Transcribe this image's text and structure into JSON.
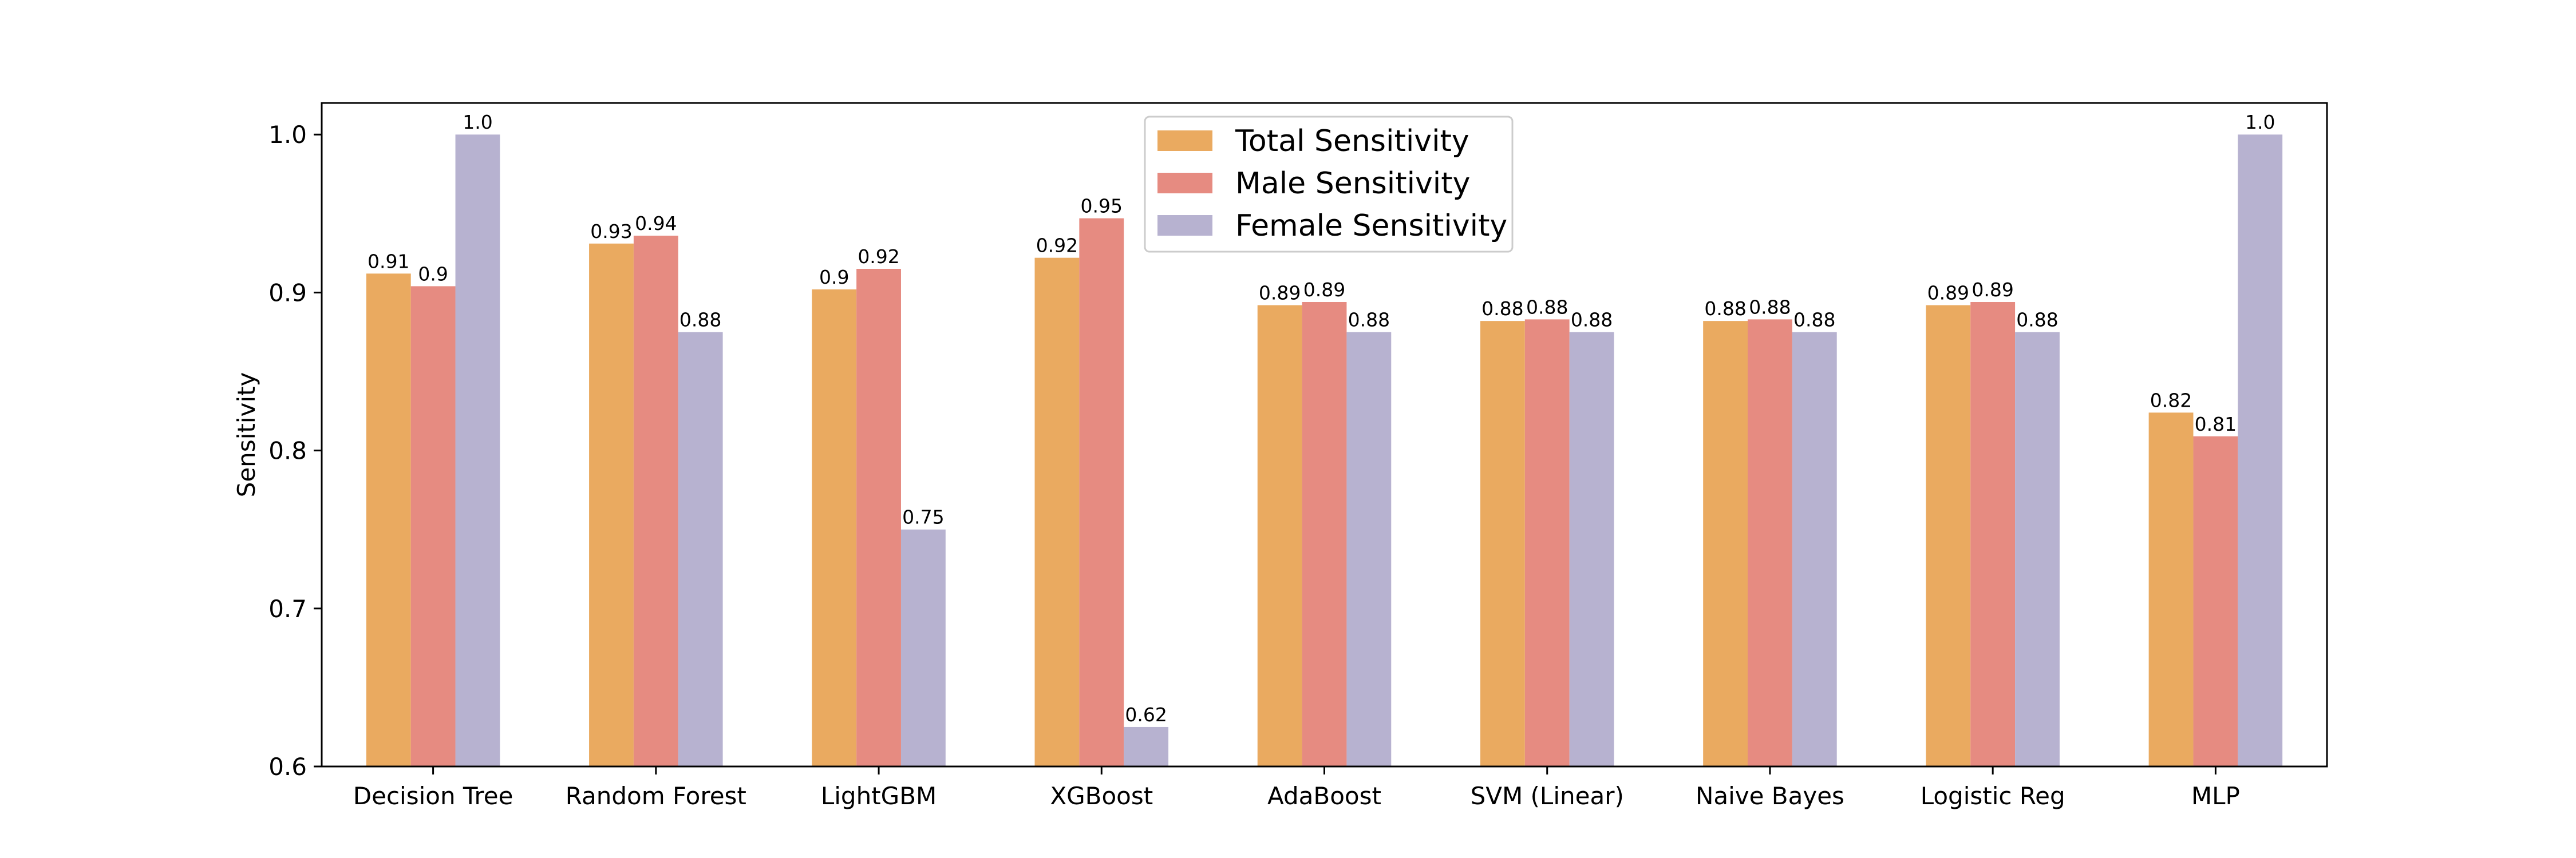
{
  "chart_data": {
    "type": "bar",
    "title": "",
    "xlabel": "",
    "ylabel": "Sensitivity",
    "ylim": [
      0.6,
      1.02
    ],
    "yticks": [
      0.6,
      0.7,
      0.8,
      0.9,
      1.0
    ],
    "ytick_labels": [
      "0.6",
      "0.7",
      "0.8",
      "0.9",
      "1.0"
    ],
    "grid": false,
    "legend_position": "top-center",
    "categories": [
      "Decision Tree",
      "Random Forest",
      "LightGBM",
      "XGBoost",
      "AdaBoost",
      "SVM (Linear)",
      "Naive Bayes",
      "Logistic Reg",
      "MLP"
    ],
    "series": [
      {
        "name": "Total Sensitivity",
        "color": "#EAAA60",
        "values": [
          0.912,
          0.931,
          0.902,
          0.922,
          0.892,
          0.882,
          0.882,
          0.892,
          0.824
        ],
        "labels": [
          "0.91",
          "0.93",
          "0.9",
          "0.92",
          "0.89",
          "0.88",
          "0.88",
          "0.89",
          "0.82"
        ]
      },
      {
        "name": "Male Sensitivity",
        "color": "#E68B81",
        "values": [
          0.904,
          0.936,
          0.915,
          0.947,
          0.894,
          0.883,
          0.883,
          0.894,
          0.809
        ],
        "labels": [
          "0.9",
          "0.94",
          "0.92",
          "0.95",
          "0.89",
          "0.88",
          "0.88",
          "0.89",
          "0.81"
        ]
      },
      {
        "name": "Female Sensitivity",
        "color": "#B7B2D0",
        "values": [
          1.0,
          0.875,
          0.75,
          0.625,
          0.875,
          0.875,
          0.875,
          0.875,
          1.0
        ],
        "labels": [
          "1.0",
          "0.88",
          "0.75",
          "0.62",
          "0.88",
          "0.88",
          "0.88",
          "0.88",
          "1.0"
        ]
      }
    ]
  }
}
